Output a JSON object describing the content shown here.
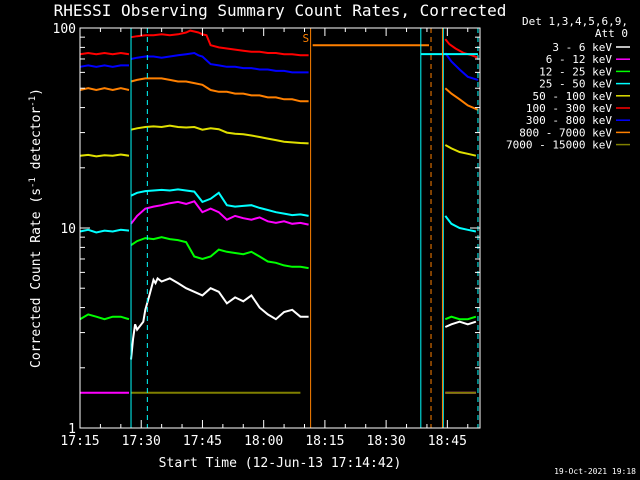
{
  "chart_data": {
    "type": "line",
    "title": "RHESSI Observing Summary Count Rates, Corrected",
    "xlabel": "Start Time (12-Jun-13 17:14:42)",
    "ylabel": "Corrected Count Rate (s⁻¹ detector⁻¹)",
    "x_unit": "minutes after 17:15 UT",
    "xlim": [
      0,
      98
    ],
    "ylim": [
      1,
      100
    ],
    "y_scale": "log",
    "x_ticks": [
      {
        "x": 0,
        "label": "17:15"
      },
      {
        "x": 15,
        "label": "17:30"
      },
      {
        "x": 30,
        "label": "17:45"
      },
      {
        "x": 45,
        "label": "18:00"
      },
      {
        "x": 60,
        "label": "18:15"
      },
      {
        "x": 75,
        "label": "18:30"
      },
      {
        "x": 90,
        "label": "18:45"
      }
    ],
    "y_ticks": [
      {
        "y": 1,
        "label": "1"
      },
      {
        "y": 10,
        "label": "10"
      },
      {
        "y": 100,
        "label": "100"
      }
    ],
    "legend_header": [
      "Det 1,3,4,5,6,9,",
      "Att 0"
    ],
    "legend_position": "right",
    "series": [
      {
        "name": "3 - 6 keV",
        "color": "#ffffff",
        "segments": [
          {
            "x": [
              12.5,
              13,
              13.5,
              14,
              15.5,
              16,
              17,
              18,
              18.5,
              19,
              20,
              21,
              22,
              24,
              26,
              28,
              30,
              32,
              34,
              36,
              38,
              40,
              42,
              44,
              46,
              48,
              50,
              52,
              54,
              56
            ],
            "y": [
              2.2,
              2.8,
              3.3,
              3.1,
              3.4,
              3.9,
              4.6,
              5.5,
              5.3,
              5.6,
              5.4,
              5.5,
              5.6,
              5.3,
              5.0,
              4.8,
              4.6,
              5.0,
              4.8,
              4.2,
              4.5,
              4.3,
              4.6,
              4.0,
              3.7,
              3.5,
              3.8,
              3.9,
              3.6,
              3.6
            ]
          },
          {
            "x": [
              89.5,
              91,
              93,
              95,
              97
            ],
            "y": [
              3.2,
              3.3,
              3.4,
              3.3,
              3.4
            ]
          }
        ]
      },
      {
        "name": "6 - 12 keV",
        "color": "#ff00ff",
        "segments": [
          {
            "x": [
              0,
              2,
              4,
              6,
              8,
              10,
              12
            ],
            "y": [
              1.5,
              1.5,
              1.5,
              1.5,
              1.5,
              1.5,
              1.5
            ]
          },
          {
            "x": [
              12.5,
              14,
              16,
              18,
              20,
              22,
              24,
              26,
              28,
              30,
              32,
              34,
              36,
              38,
              40,
              42,
              44,
              46,
              48,
              50,
              52,
              54,
              56
            ],
            "y": [
              10.5,
              11.5,
              12.5,
              12.8,
              13.0,
              13.3,
              13.5,
              13.2,
              13.6,
              12.0,
              12.5,
              12.0,
              11.0,
              11.5,
              11.2,
              11.0,
              11.3,
              10.8,
              10.6,
              10.8,
              10.5,
              10.6,
              10.4
            ]
          },
          {
            "x": [
              89.5,
              91,
              93,
              95,
              97
            ],
            "y": [
              1.5,
              1.5,
              1.5,
              1.5,
              1.5
            ]
          }
        ]
      },
      {
        "name": "12 - 25 keV",
        "color": "#00ff00",
        "segments": [
          {
            "x": [
              0,
              2,
              4,
              6,
              8,
              10,
              12
            ],
            "y": [
              3.5,
              3.7,
              3.6,
              3.5,
              3.6,
              3.6,
              3.5
            ]
          },
          {
            "x": [
              12.5,
              14,
              16,
              18,
              20,
              22,
              24,
              26,
              28,
              30,
              32,
              34,
              36,
              38,
              40,
              42,
              44,
              46,
              48,
              50,
              52,
              54,
              56
            ],
            "y": [
              8.2,
              8.6,
              8.9,
              8.8,
              9.0,
              8.8,
              8.7,
              8.5,
              7.2,
              7.0,
              7.2,
              7.8,
              7.6,
              7.5,
              7.4,
              7.6,
              7.2,
              6.8,
              6.7,
              6.5,
              6.4,
              6.4,
              6.3
            ]
          },
          {
            "x": [
              89.5,
              91,
              93,
              95,
              97
            ],
            "y": [
              3.5,
              3.6,
              3.5,
              3.5,
              3.6
            ]
          }
        ]
      },
      {
        "name": "25 - 50 keV",
        "color": "#00ffff",
        "segments": [
          {
            "x": [
              0,
              2,
              4,
              6,
              8,
              10,
              12
            ],
            "y": [
              9.6,
              9.8,
              9.5,
              9.7,
              9.6,
              9.8,
              9.7
            ]
          },
          {
            "x": [
              12.5,
              14,
              16,
              18,
              20,
              22,
              24,
              26,
              28,
              30,
              32,
              34,
              36,
              38,
              40,
              42,
              44,
              46,
              48,
              50,
              52,
              54,
              56
            ],
            "y": [
              14.5,
              15.0,
              15.3,
              15.4,
              15.5,
              15.4,
              15.6,
              15.4,
              15.2,
              13.5,
              14.0,
              15.0,
              13.0,
              12.8,
              12.9,
              13.0,
              12.6,
              12.3,
              12.0,
              11.8,
              11.6,
              11.7,
              11.5
            ]
          },
          {
            "x": [
              89.5,
              91,
              93,
              95,
              97
            ],
            "y": [
              11.5,
              10.5,
              10.0,
              9.8,
              9.6
            ]
          }
        ]
      },
      {
        "name": "50 - 100 keV",
        "color": "#e0e000",
        "segments": [
          {
            "x": [
              0,
              2,
              4,
              6,
              8,
              10,
              12
            ],
            "y": [
              23.0,
              23.2,
              22.8,
              23.1,
              23.0,
              23.3,
              23.0
            ]
          },
          {
            "x": [
              12.5,
              14,
              16,
              18,
              20,
              22,
              24,
              26,
              28,
              30,
              32,
              34,
              36,
              38,
              40,
              42,
              44,
              46,
              48,
              50,
              52,
              54,
              56
            ],
            "y": [
              31.0,
              31.5,
              32.0,
              32.2,
              32.0,
              32.5,
              32.0,
              31.8,
              32.0,
              31.0,
              31.5,
              31.2,
              30.0,
              29.6,
              29.4,
              29.0,
              28.5,
              28.0,
              27.5,
              27.0,
              26.8,
              26.6,
              26.5
            ]
          },
          {
            "x": [
              89.5,
              91,
              93,
              95,
              97
            ],
            "y": [
              26.0,
              25.0,
              24.0,
              23.5,
              23.0
            ]
          }
        ]
      },
      {
        "name": "100 - 300 keV",
        "color": "#ff0000",
        "segments": [
          {
            "x": [
              0,
              2,
              4,
              6,
              8,
              10,
              12
            ],
            "y": [
              74,
              75,
              74,
              75,
              74,
              75,
              74
            ]
          },
          {
            "x": [
              12.5,
              14,
              16,
              18,
              20,
              22,
              24,
              26,
              27,
              28,
              29,
              30,
              31,
              32,
              34,
              36,
              38,
              40,
              42,
              44,
              46,
              48,
              50,
              52,
              54,
              56
            ],
            "y": [
              90,
              91,
              92,
              92,
              93,
              92,
              93,
              95,
              97,
              96,
              95,
              93,
              92,
              82,
              80,
              79,
              78,
              77,
              76,
              76,
              75,
              75,
              74,
              74,
              73,
              73
            ]
          },
          {
            "x": [
              89.5,
              90.5,
              92,
              94,
              96,
              97.5
            ],
            "y": [
              88,
              83,
              79,
              75,
              73,
              71
            ]
          }
        ]
      },
      {
        "name": "300 - 800 keV",
        "color": "#0000ff",
        "segments": [
          {
            "x": [
              0,
              2,
              4,
              6,
              8,
              10,
              12
            ],
            "y": [
              64,
              65,
              64,
              65,
              64,
              65,
              65
            ]
          },
          {
            "x": [
              12.5,
              14,
              16,
              18,
              20,
              22,
              24,
              26,
              28,
              29,
              30,
              32,
              34,
              36,
              38,
              40,
              42,
              44,
              46,
              48,
              50,
              52,
              54,
              56
            ],
            "y": [
              70,
              71,
              72,
              72,
              71,
              72,
              73,
              74,
              75,
              73,
              72,
              66,
              65,
              64,
              64,
              63,
              63,
              62,
              62,
              61,
              61,
              60,
              60,
              60
            ]
          },
          {
            "x": [
              89.5,
              91,
              93,
              95,
              97.5
            ],
            "y": [
              75,
              68,
              62,
              57,
              55
            ]
          }
        ]
      },
      {
        "name": "800 - 7000 keV",
        "color": "#ff8000",
        "segments": [
          {
            "x": [
              0,
              2,
              4,
              6,
              8,
              10,
              12
            ],
            "y": [
              49,
              50,
              49,
              50,
              49,
              50,
              49
            ]
          },
          {
            "x": [
              12.5,
              14,
              16,
              18,
              20,
              22,
              24,
              26,
              28,
              30,
              32,
              34,
              36,
              38,
              40,
              42,
              44,
              46,
              48,
              50,
              52,
              54,
              56
            ],
            "y": [
              54,
              55,
              56,
              56,
              56,
              55,
              54,
              54,
              53,
              52,
              49,
              48,
              48,
              47,
              47,
              46,
              46,
              45,
              45,
              44,
              44,
              43,
              43
            ]
          },
          {
            "x": [
              57,
              60,
              63,
              66,
              69,
              72,
              75,
              78,
              81,
              84,
              85.5
            ],
            "y": [
              82,
              82,
              82,
              82,
              82,
              82,
              82,
              82,
              82,
              82,
              82
            ]
          },
          {
            "x": [
              89.5,
              91,
              93,
              95,
              97.5
            ],
            "y": [
              50,
              47,
              44,
              41,
              39
            ]
          }
        ]
      },
      {
        "name": "7000 - 15000 keV",
        "color": "#808000",
        "segments": [
          {
            "x": [
              12.5,
              14,
              16,
              18,
              20,
              22,
              24,
              26,
              28,
              30,
              32,
              34,
              36,
              38,
              40,
              42,
              44,
              46,
              48,
              50,
              52,
              54
            ],
            "y": [
              1.5,
              1.5,
              1.5,
              1.5,
              1.5,
              1.5,
              1.5,
              1.5,
              1.5,
              1.5,
              1.5,
              1.5,
              1.5,
              1.5,
              1.5,
              1.5,
              1.5,
              1.5,
              1.5,
              1.5,
              1.5,
              1.5
            ]
          },
          {
            "x": [
              89.5,
              91,
              93,
              95,
              97
            ],
            "y": [
              1.5,
              1.5,
              1.5,
              1.5,
              1.5
            ]
          }
        ]
      }
    ],
    "attenuator_lines": [
      {
        "x": 12.5,
        "style": "solid",
        "color": "#00ffff"
      },
      {
        "x": 16.5,
        "style": "dashed",
        "color": "#00ffff"
      },
      {
        "x": 97.5,
        "style": "dashed",
        "color": "#00ffff"
      },
      {
        "x": 83.5,
        "style": "solid",
        "color": "#00ffff"
      },
      {
        "x": 89,
        "style": "solid",
        "color": "#00ffff"
      }
    ],
    "saa_lines": [
      {
        "x": 56.5,
        "style": "solid",
        "color": "#ff8000"
      },
      {
        "x": 86,
        "style": "dashed",
        "color": "#ff8000"
      },
      {
        "x": 88.8,
        "style": "solid",
        "color": "#ff8000"
      }
    ],
    "cyan_high_segment": {
      "x": [
        83.5,
        97.5
      ],
      "y": [
        74,
        74
      ]
    },
    "saa_label": {
      "text": "S",
      "x": 54.5,
      "y": 85
    },
    "timestamp": "19-Oct-2021 19:18"
  }
}
